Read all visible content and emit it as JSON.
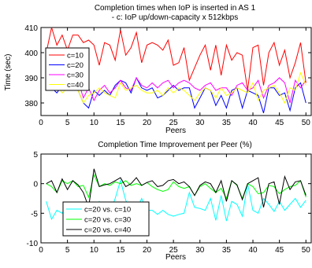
{
  "chart_data": [
    {
      "type": "line",
      "title_lines": [
        "Completion times when IoP is inserted in AS 1",
        "- c: IoP up/down-capacity x 512kbps"
      ],
      "xlabel": "Peers",
      "ylabel": "Time (sec)",
      "xlim": [
        0,
        51
      ],
      "ylim": [
        375,
        410
      ],
      "xticks": [
        0,
        5,
        10,
        15,
        20,
        25,
        30,
        35,
        40,
        45,
        50
      ],
      "yticks": [
        380,
        390,
        400,
        410
      ],
      "grid": false,
      "legend_position": "left",
      "series": [
        {
          "name": "c=10",
          "color": "#ff0000",
          "x": [
            1,
            2,
            3,
            4,
            5,
            6,
            7,
            8,
            9,
            10,
            11,
            12,
            13,
            14,
            15,
            16,
            17,
            18,
            19,
            20,
            21,
            22,
            23,
            24,
            25,
            26,
            27,
            28,
            29,
            30,
            31,
            32,
            33,
            34,
            35,
            36,
            37,
            38,
            39,
            40,
            41,
            42,
            43,
            44,
            45,
            46,
            47,
            48,
            49,
            50
          ],
          "values": [
            400,
            410,
            403,
            407,
            401,
            407,
            407,
            404,
            405,
            403,
            395,
            404,
            403,
            397,
            409,
            399,
            402,
            408,
            396,
            403,
            404,
            403,
            401,
            405,
            395,
            396,
            402,
            389,
            394,
            399,
            403,
            393,
            403,
            391,
            403,
            397,
            400,
            399,
            385,
            402,
            403,
            387,
            400,
            404,
            395,
            401,
            390,
            396,
            404,
            388
          ]
        },
        {
          "name": "c=20",
          "color": "#0000ff",
          "x": [
            1,
            2,
            3,
            4,
            5,
            6,
            7,
            8,
            9,
            10,
            11,
            12,
            13,
            14,
            15,
            16,
            17,
            18,
            19,
            20,
            21,
            22,
            23,
            24,
            25,
            26,
            27,
            28,
            29,
            30,
            31,
            32,
            33,
            34,
            35,
            36,
            37,
            38,
            39,
            40,
            41,
            42,
            43,
            44,
            45,
            46,
            47,
            48,
            49,
            50
          ],
          "values": [
            388,
            386,
            384,
            387,
            387,
            388,
            385,
            380,
            378,
            385,
            383,
            385,
            383,
            387,
            389,
            388,
            384,
            390,
            386,
            385,
            386,
            382,
            383,
            385,
            387,
            385,
            386,
            386,
            378,
            382,
            386,
            385,
            379,
            383,
            378,
            385,
            386,
            378,
            385,
            384,
            383,
            376,
            386,
            386,
            383,
            384,
            377,
            386,
            388,
            380
          ]
        },
        {
          "name": "c=30",
          "color": "#ff00ff",
          "x": [
            1,
            2,
            3,
            4,
            5,
            6,
            7,
            8,
            9,
            10,
            11,
            12,
            13,
            14,
            15,
            16,
            17,
            18,
            19,
            20,
            21,
            22,
            23,
            24,
            25,
            26,
            27,
            28,
            29,
            30,
            31,
            32,
            33,
            34,
            35,
            36,
            37,
            38,
            39,
            40,
            41,
            42,
            43,
            44,
            45,
            46,
            47,
            48,
            49,
            50
          ],
          "values": [
            387,
            386,
            388,
            386,
            387,
            387,
            389,
            382,
            386,
            381,
            385,
            387,
            384,
            386,
            389,
            386,
            385,
            390,
            387,
            386,
            388,
            386,
            388,
            389,
            386,
            388,
            389,
            388,
            386,
            385,
            387,
            388,
            385,
            386,
            386,
            383,
            387,
            388,
            385,
            386,
            389,
            382,
            387,
            388,
            390,
            388,
            380,
            389,
            386,
            389
          ]
        },
        {
          "name": "c=40",
          "color": "#ffff00",
          "x": [
            1,
            2,
            3,
            4,
            5,
            6,
            7,
            8,
            9,
            10,
            11,
            12,
            13,
            14,
            15,
            16,
            17,
            18,
            19,
            20,
            21,
            22,
            23,
            24,
            25,
            26,
            27,
            28,
            29,
            30,
            31,
            32,
            33,
            34,
            35,
            36,
            37,
            38,
            39,
            40,
            41,
            42,
            43,
            44,
            45,
            46,
            47,
            48,
            49,
            50
          ],
          "values": [
            388,
            385,
            387,
            384,
            386,
            387,
            385,
            380,
            383,
            384,
            386,
            384,
            383,
            382,
            388,
            385,
            386,
            387,
            385,
            384,
            384,
            385,
            383,
            386,
            384,
            386,
            385,
            383,
            381,
            384,
            386,
            385,
            382,
            386,
            383,
            384,
            386,
            385,
            384,
            388,
            381,
            385,
            386,
            387,
            384,
            380,
            386,
            385,
            392,
            387
          ]
        }
      ]
    },
    {
      "type": "line",
      "title": "Completion Time Improvement per Peer (%)",
      "xlabel": "Peers",
      "ylabel": "",
      "xlim": [
        0,
        51
      ],
      "ylim": [
        -10,
        5
      ],
      "xticks": [
        0,
        5,
        10,
        15,
        20,
        25,
        30,
        35,
        40,
        45,
        50
      ],
      "yticks": [
        -10,
        -5,
        0,
        5
      ],
      "grid": false,
      "legend_position": "lower-left",
      "series": [
        {
          "name": "c=20 vs. c=10",
          "color": "#00ffff",
          "x": [
            1,
            2,
            3,
            4,
            5,
            6,
            7,
            8,
            9,
            10,
            11,
            12,
            13,
            14,
            15,
            16,
            17,
            18,
            19,
            20,
            21,
            22,
            23,
            24,
            25,
            26,
            27,
            28,
            29,
            30,
            31,
            32,
            33,
            34,
            35,
            36,
            37,
            38,
            39,
            40,
            41,
            42,
            43,
            44,
            45,
            46,
            47,
            48,
            49,
            50
          ],
          "values": [
            -3,
            -6,
            -4.5,
            -5,
            -3.5,
            -5,
            -5.2,
            -6,
            -6.5,
            -4.5,
            -3,
            -4.5,
            -5,
            -2.5,
            0.5,
            -2.8,
            -4.5,
            -4.5,
            -2.5,
            -4.5,
            -4.5,
            -5.2,
            -4.5,
            -5.2,
            -5.5,
            -5.2,
            -5,
            -1.5,
            -4,
            -4.2,
            -4.5,
            -2.5,
            -6.2,
            -2,
            -6.3,
            -3,
            -3.5,
            -5.5,
            0,
            -4.5,
            -5,
            -2.5,
            -3.5,
            -4.7,
            -3,
            -4.5,
            -3.5,
            -2.5,
            -4,
            -2.8
          ]
        },
        {
          "name": "c=20 vs. c=30",
          "color": "#00ff00",
          "x": [
            1,
            2,
            3,
            4,
            5,
            6,
            7,
            8,
            9,
            10,
            11,
            12,
            13,
            14,
            15,
            16,
            17,
            18,
            19,
            20,
            21,
            22,
            23,
            24,
            25,
            26,
            27,
            28,
            29,
            30,
            31,
            32,
            33,
            34,
            35,
            36,
            37,
            38,
            39,
            40,
            41,
            42,
            43,
            44,
            45,
            46,
            47,
            48,
            49,
            50
          ],
          "values": [
            0,
            -0.5,
            -1.5,
            0.5,
            0,
            0.5,
            -0.5,
            -0.3,
            -2.3,
            1.5,
            -0.5,
            0,
            -0.3,
            0.3,
            0,
            0.5,
            -0.3,
            0,
            -0.3,
            0.2,
            -0.5,
            -1,
            -1.3,
            -1,
            0.3,
            -0.5,
            -0.8,
            -0.5,
            -2,
            -0.5,
            0,
            -0.8,
            -1.5,
            -0.8,
            -2.5,
            0.5,
            -0.3,
            -2.5,
            0,
            -0.5,
            -1.7,
            -1.5,
            -0.3,
            -0.5,
            -1.7,
            -1,
            -0.5,
            -0.3,
            0.5,
            -2.3
          ]
        },
        {
          "name": "c=20 vs. c=40",
          "color": "#000000",
          "x": [
            1,
            2,
            3,
            4,
            5,
            6,
            7,
            8,
            9,
            10,
            11,
            12,
            13,
            14,
            15,
            16,
            17,
            18,
            19,
            20,
            21,
            22,
            23,
            24,
            25,
            26,
            27,
            28,
            29,
            30,
            31,
            32,
            33,
            34,
            35,
            36,
            37,
            38,
            39,
            40,
            41,
            42,
            43,
            44,
            45,
            46,
            47,
            48,
            49,
            50
          ],
          "values": [
            0,
            0.5,
            -1.5,
            0.8,
            -1,
            0.5,
            -0.2,
            -1.5,
            -4,
            2.5,
            -0.5,
            -0.2,
            0,
            0.5,
            1,
            -0.5,
            0,
            1,
            -0.3,
            0.2,
            0.5,
            -0.5,
            -0.3,
            0.5,
            0.7,
            0,
            0.3,
            -0.5,
            -2,
            -0.3,
            0.3,
            0,
            -1.5,
            0.5,
            -3,
            0.5,
            -0.2,
            -2.7,
            0,
            0.5,
            1,
            -4,
            0,
            0.3,
            -3.5,
            1.2,
            -1,
            0.3,
            0.5,
            -2
          ]
        }
      ]
    }
  ]
}
